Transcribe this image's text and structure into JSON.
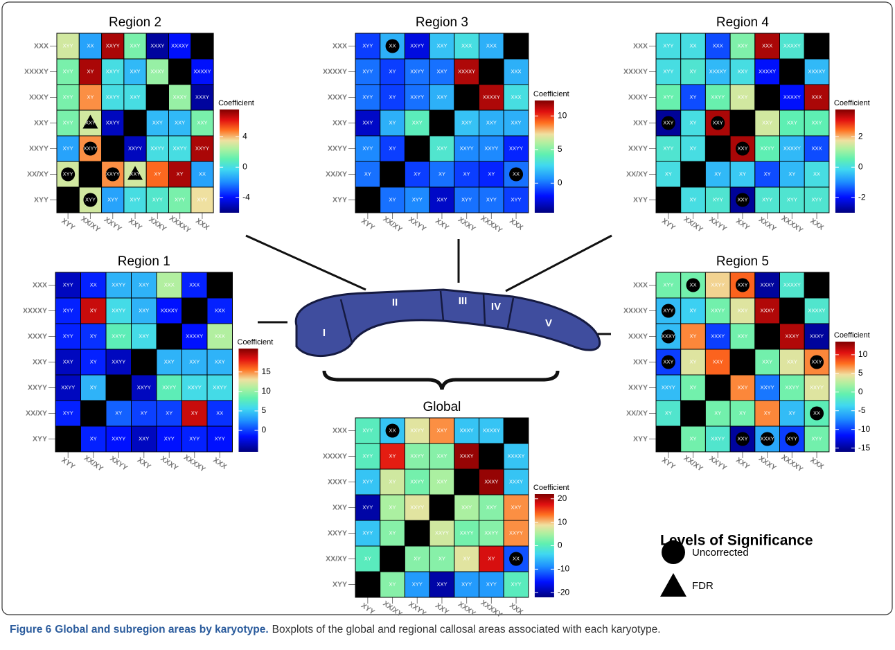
{
  "chart_data": [
    {
      "type": "heatmap",
      "title": "Region 2",
      "colorbar_label": "Coefficient",
      "rows": [
        "XXX",
        "XXXXY",
        "XXXY",
        "XXY",
        "XXYY",
        "XX/XY",
        "XYY"
      ],
      "columns": [
        "XYY",
        "XX/XY",
        "XXYY",
        "XXY",
        "XXXY",
        "XXXXY",
        "XXX"
      ],
      "clim": [
        -6,
        7.6
      ],
      "colorbar_ticks": [
        -4,
        0,
        4
      ],
      "values": [
        [
          3,
          -1.5,
          7,
          1.5,
          -5.5,
          -4,
          null
        ],
        [
          1.5,
          7,
          0,
          -1,
          2,
          null,
          -4
        ],
        [
          1.5,
          4.5,
          0,
          0,
          null,
          2,
          -5.5
        ],
        [
          1.5,
          3,
          -5,
          null,
          -1,
          -1,
          1.5
        ],
        [
          -1.5,
          4.5,
          null,
          -5,
          0,
          0,
          7
        ],
        [
          3,
          null,
          4.5,
          3,
          5,
          7,
          -1.5
        ],
        [
          null,
          3,
          -1.5,
          0,
          0.5,
          1.5,
          3.5
        ]
      ],
      "cell_labels": [
        [
          "XYY",
          "XX",
          "XXYY",
          "XXY",
          "XXXY",
          "XXXXY",
          null
        ],
        [
          "XYY",
          "XY",
          "XXYY",
          "XXY",
          "XXXY",
          null,
          "XXXXY"
        ],
        [
          "XYY",
          "XY",
          "XXYY",
          "XXY",
          null,
          "XXXY",
          "XXXY"
        ],
        [
          "XYY",
          "XXY",
          "XXYY",
          null,
          "XXY",
          "XXY",
          "XXY"
        ],
        [
          "XYY",
          "XXYY",
          null,
          "XXYY",
          "XXYY",
          "XXYY",
          "XXYY"
        ],
        [
          "XYY",
          null,
          "XXYY",
          "XXY",
          "XY",
          "XY",
          "XX"
        ],
        [
          null,
          "XYY",
          "XYY",
          "XYY",
          "XYY",
          "XYY",
          "XYY"
        ]
      ],
      "markers": [
        {
          "row": "XXY",
          "col": "XX/XY",
          "level": "FDR"
        },
        {
          "row": "XXYY",
          "col": "XX/XY",
          "level": "Uncorrected"
        },
        {
          "row": "XX/XY",
          "col": "XYY",
          "level": "Uncorrected"
        },
        {
          "row": "XX/XY",
          "col": "XXYY",
          "level": "Uncorrected"
        },
        {
          "row": "XX/XY",
          "col": "XXY",
          "level": "FDR"
        },
        {
          "row": "XYY",
          "col": "XX/XY",
          "level": "Uncorrected"
        }
      ]
    },
    {
      "type": "heatmap",
      "title": "Region 3",
      "colorbar_label": "Coefficient",
      "rows": [
        "XXX",
        "XXXXY",
        "XXXY",
        "XXY",
        "XXYY",
        "XX/XY",
        "XYY"
      ],
      "columns": [
        "XYY",
        "XX/XY",
        "XXYY",
        "XXY",
        "XXXY",
        "XXXXY",
        "XXX"
      ],
      "clim": [
        -4.4,
        12.3
      ],
      "colorbar_ticks": [
        0,
        5,
        10
      ],
      "values": [
        [
          -1,
          1.5,
          -2.5,
          2,
          3,
          1.5,
          null
        ],
        [
          0,
          -1,
          0,
          0,
          11.5,
          null,
          1.5
        ],
        [
          0,
          -1,
          0,
          1.5,
          null,
          11.5,
          3
        ],
        [
          -3,
          1.5,
          4,
          null,
          2,
          1.5,
          1.5
        ],
        [
          0.5,
          -1,
          null,
          3.5,
          0.5,
          0.5,
          -1.5
        ],
        [
          0,
          null,
          -1,
          0,
          -1,
          -1.5,
          0
        ],
        [
          null,
          0,
          0.5,
          -3,
          0,
          0,
          -1
        ]
      ],
      "cell_labels": [
        [
          "XYY",
          "XX",
          "XXYY",
          "XXY",
          "XXX",
          "XXX",
          null
        ],
        [
          "XYY",
          "XY",
          "XXYY",
          "XXY",
          "XXXXY",
          null,
          "XXX"
        ],
        [
          "XYY",
          "XY",
          "XXYY",
          "XXY",
          null,
          "XXXXY",
          "XXX"
        ],
        [
          "XXY",
          "XY",
          "XXY",
          null,
          "XXY",
          "XXY",
          "XXY"
        ],
        [
          "XYY",
          "XY",
          null,
          "XXY",
          "XXYY",
          "XXYY",
          "XXYY"
        ],
        [
          "XY",
          null,
          "XY",
          "XY",
          "XY",
          "XY",
          "XX"
        ],
        [
          null,
          "XY",
          "XYY",
          "XXY",
          "XYY",
          "XYY",
          "XYY"
        ]
      ],
      "markers": [
        {
          "row": "XXX",
          "col": "XX/XY",
          "level": "Uncorrected"
        },
        {
          "row": "XX/XY",
          "col": "XXX",
          "level": "Uncorrected"
        }
      ]
    },
    {
      "type": "heatmap",
      "title": "Region 4",
      "colorbar_label": "Coefficient",
      "rows": [
        "XXX",
        "XXXXY",
        "XXXY",
        "XXY",
        "XXYY",
        "XX/XY",
        "XYY"
      ],
      "columns": [
        "XYY",
        "XX/XY",
        "XXYY",
        "XXY",
        "XXXY",
        "XXXXY",
        "XXX"
      ],
      "clim": [
        -3,
        3.8
      ],
      "colorbar_ticks": [
        -2,
        0,
        2
      ],
      "values": [
        [
          0,
          0,
          -1.5,
          0.8,
          3.5,
          0.2,
          null
        ],
        [
          0,
          0.2,
          -0.5,
          0,
          -2,
          null,
          -0.5
        ],
        [
          0.6,
          -1.5,
          0.6,
          1.5,
          null,
          -2,
          3.5
        ],
        [
          -2.8,
          0,
          3.5,
          null,
          1.5,
          0.5,
          0.5
        ],
        [
          0.2,
          0,
          null,
          3.5,
          0.5,
          -0.5,
          -1.5
        ],
        [
          0,
          null,
          -0.5,
          -0.3,
          -1.5,
          -0.5,
          0
        ],
        [
          null,
          0,
          0.2,
          -2.8,
          0.2,
          0.2,
          0.2
        ]
      ],
      "cell_labels": [
        [
          "XYY",
          "XX",
          "XXX",
          "XXY",
          "XXX",
          "XXXXY",
          null
        ],
        [
          "XYY",
          "XY",
          "XXXXY",
          "XXY",
          "XXXXY",
          null,
          "XXXXY"
        ],
        [
          "XYY",
          "XY",
          "XXYY",
          "XXY",
          null,
          "XXXXY",
          "XXX"
        ],
        [
          "XXY",
          "XY",
          "XXY",
          null,
          "XXY",
          "XXY",
          "XXY"
        ],
        [
          "XYY",
          "XY",
          null,
          "XXY",
          "XXYY",
          "XXXXY",
          "XXX"
        ],
        [
          "XY",
          null,
          "XY",
          "XY",
          "XY",
          "XY",
          "XX"
        ],
        [
          null,
          "XY",
          "XYY",
          "XXY",
          "XYY",
          "XYY",
          "XYY"
        ]
      ],
      "markers": [
        {
          "row": "XXY",
          "col": "XYY",
          "level": "Uncorrected"
        },
        {
          "row": "XXY",
          "col": "XXYY",
          "level": "Uncorrected"
        },
        {
          "row": "XXYY",
          "col": "XXY",
          "level": "Uncorrected"
        },
        {
          "row": "XYY",
          "col": "XXY",
          "level": "Uncorrected"
        }
      ]
    },
    {
      "type": "heatmap",
      "title": "Region 1",
      "colorbar_label": "Coefficient",
      "rows": [
        "XXX",
        "XXXXY",
        "XXXY",
        "XXY",
        "XXYY",
        "XX/XY",
        "XYY"
      ],
      "columns": [
        "XYY",
        "XX/XY",
        "XXYY",
        "XXY",
        "XXXY",
        "XXXXY",
        "XXX"
      ],
      "clim": [
        -5.5,
        21
      ],
      "colorbar_ticks": [
        0,
        5,
        10,
        15
      ],
      "values": [
        [
          -3.5,
          -1,
          4,
          4,
          11,
          -1,
          null
        ],
        [
          -1,
          19,
          6,
          4,
          -1.5,
          null,
          -1
        ],
        [
          -1,
          -0.5,
          8,
          6,
          null,
          -1.5,
          11
        ],
        [
          -3.5,
          -1,
          -3.5,
          null,
          4,
          4,
          4
        ],
        [
          -3.5,
          4,
          null,
          -3.5,
          8,
          6,
          6
        ],
        [
          -1,
          null,
          1,
          0,
          0,
          19,
          -0.5
        ],
        [
          null,
          -1,
          -1.5,
          -3.5,
          -1.5,
          -1,
          -1.5
        ]
      ],
      "cell_labels": [
        [
          "XYY",
          "XX",
          "XXYY",
          "XXY",
          "XXX",
          "XXX",
          null
        ],
        [
          "XYY",
          "XY",
          "XXYY",
          "XXY",
          "XXXXY",
          null,
          "XXX"
        ],
        [
          "XYY",
          "XY",
          "XXYY",
          "XXY",
          null,
          "XXXXY",
          "XXX"
        ],
        [
          "XXY",
          "XY",
          "XXYY",
          null,
          "XXY",
          "XXY",
          "XXY"
        ],
        [
          "XXYY",
          "XY",
          null,
          "XXYY",
          "XXYY",
          "XXYY",
          "XXYY"
        ],
        [
          "XYY",
          null,
          "XY",
          "XY",
          "XY",
          "XY",
          "XX"
        ],
        [
          null,
          "XY",
          "XXYY",
          "XXY",
          "XYY",
          "XYY",
          "XYY"
        ]
      ],
      "markers": []
    },
    {
      "type": "heatmap",
      "title": "Region 5",
      "colorbar_label": "Coefficient",
      "rows": [
        "XXX",
        "XXXXY",
        "XXXY",
        "XXY",
        "XXYY",
        "XX/XY",
        "XYY"
      ],
      "columns": [
        "XYY",
        "XX/XY",
        "XXYY",
        "XXY",
        "XXXY",
        "XXXXY",
        "XXX"
      ],
      "clim": [
        -16,
        13.5
      ],
      "colorbar_ticks": [
        -15,
        -10,
        -5,
        0,
        5,
        10
      ],
      "values": [
        [
          0,
          0,
          5,
          8,
          -15,
          -2,
          null
        ],
        [
          -5,
          -4,
          0,
          4,
          12,
          null,
          -2
        ],
        [
          -5,
          7,
          -10,
          0,
          null,
          12,
          -15
        ],
        [
          -10,
          4,
          8,
          null,
          0,
          4,
          7
        ],
        [
          -5,
          0,
          null,
          7,
          -8,
          0,
          4
        ],
        [
          -2,
          null,
          0,
          0,
          7,
          -5,
          -1
        ],
        [
          null,
          0,
          -2,
          -15,
          -6,
          -10,
          0
        ]
      ],
      "cell_labels": [
        [
          "XYY",
          "XX",
          "XXYY",
          "XXY",
          "XXXY",
          "XXXXY",
          null
        ],
        [
          "XYY",
          "XY",
          "XXYY",
          "XXY",
          "XXXY",
          null,
          "XXXXY"
        ],
        [
          "XXXY",
          "XY",
          "XXXY",
          "XXY",
          null,
          "XXXY",
          "XXXY"
        ],
        [
          "XXY",
          "XY",
          "XXY",
          null,
          "XXY",
          "XXY",
          "XXY"
        ],
        [
          "XXYY",
          "XY",
          null,
          "XXY",
          "XXYY",
          "XXYY",
          "XXYY"
        ],
        [
          "XY",
          null,
          "XY",
          "XY",
          "XY",
          "XY",
          "XX"
        ],
        [
          null,
          "XY",
          "XXYY",
          "XXY",
          "XXXY",
          "XYY",
          "XYY"
        ]
      ],
      "markers": [
        {
          "row": "XXX",
          "col": "XX/XY",
          "level": "Uncorrected"
        },
        {
          "row": "XXX",
          "col": "XXY",
          "level": "Uncorrected"
        },
        {
          "row": "XXXXY",
          "col": "XYY",
          "level": "Uncorrected"
        },
        {
          "row": "XXXY",
          "col": "XYY",
          "level": "Uncorrected"
        },
        {
          "row": "XXY",
          "col": "XYY",
          "level": "Uncorrected"
        },
        {
          "row": "XXY",
          "col": "XXX",
          "level": "Uncorrected"
        },
        {
          "row": "XX/XY",
          "col": "XXX",
          "level": "Uncorrected"
        },
        {
          "row": "XYY",
          "col": "XXY",
          "level": "Uncorrected"
        },
        {
          "row": "XYY",
          "col": "XXXY",
          "level": "Uncorrected"
        },
        {
          "row": "XYY",
          "col": "XXXXY",
          "level": "Uncorrected"
        }
      ]
    },
    {
      "type": "heatmap",
      "title": "Global",
      "colorbar_label": "Coefficient",
      "rows": [
        "XXX",
        "XXXXY",
        "XXXY",
        "XXY",
        "XXYY",
        "XX/XY",
        "XYY"
      ],
      "columns": [
        "XYY",
        "XX/XY",
        "XXYY",
        "XXY",
        "XXXY",
        "XXXXY",
        "XXX"
      ],
      "clim": [
        -22,
        22
      ],
      "colorbar_ticks": [
        -20,
        -10,
        0,
        10,
        20
      ],
      "values": [
        [
          0,
          -5,
          8,
          12,
          -5,
          -5,
          null
        ],
        [
          0,
          17,
          3,
          3,
          21,
          null,
          -5
        ],
        [
          -5,
          7,
          2,
          5,
          null,
          21,
          -5
        ],
        [
          -20,
          5,
          8,
          null,
          5,
          3,
          12
        ],
        [
          -5,
          3,
          null,
          7,
          2,
          3,
          12
        ],
        [
          0,
          null,
          3,
          3,
          8,
          18,
          -12
        ],
        [
          null,
          3,
          -8,
          -20,
          -8,
          -8,
          0
        ]
      ],
      "cell_labels": [
        [
          "XYY",
          "XX",
          "XXYY",
          "XXY",
          "XXXY",
          "XXXXY",
          null
        ],
        [
          "XYY",
          "XY",
          "XXYY",
          "XXY",
          "XXXY",
          null,
          "XXXXY"
        ],
        [
          "XYY",
          "XY",
          "XXYY",
          "XXY",
          null,
          "XXXY",
          "XXXY"
        ],
        [
          "XYY",
          "XY",
          "XXYY",
          null,
          "XXY",
          "XXY",
          "XXY"
        ],
        [
          "XYY",
          "XY",
          null,
          "XXYY",
          "XXYY",
          "XXYY",
          "XXYY"
        ],
        [
          "XY",
          null,
          "XY",
          "XY",
          "XY",
          "XY",
          "XX"
        ],
        [
          null,
          "XY",
          "XYY",
          "XXY",
          "XYY",
          "XYY",
          "XYY"
        ]
      ],
      "markers": [
        {
          "row": "XXX",
          "col": "XX/XY",
          "level": "Uncorrected"
        },
        {
          "row": "XX/XY",
          "col": "XXX",
          "level": "Uncorrected"
        }
      ]
    }
  ],
  "diagram": {
    "sections": [
      "I",
      "II",
      "III",
      "IV",
      "V"
    ]
  },
  "legend": {
    "title": "Levels of Significance",
    "levels": [
      "Uncorrected",
      "FDR"
    ]
  },
  "caption": {
    "label": "Figure 6",
    "title": "Global and subregion areas by karyotype.",
    "text": "Boxplots of the global and regional callosal areas associated with each karyotype."
  }
}
